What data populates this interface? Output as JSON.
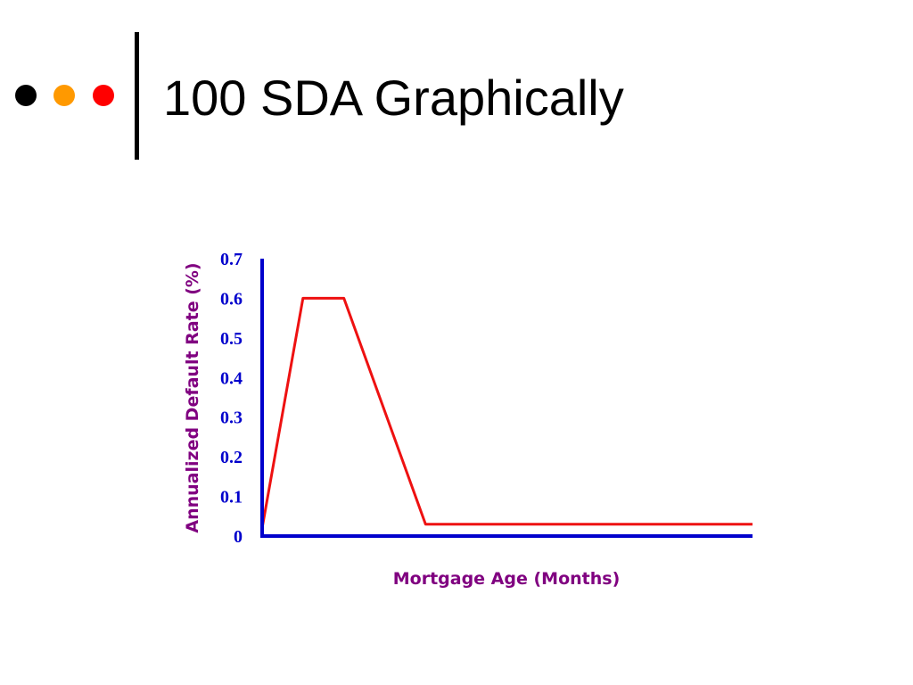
{
  "slide": {
    "title": "100 SDA Graphically"
  },
  "decor": {
    "bullet_colors": [
      "#000000",
      "#ff9900",
      "#ff0000"
    ]
  },
  "colors": {
    "axis": "#0000cc",
    "series": "#ee1111",
    "axis_title": "#800080",
    "tick_label": "#0000cc"
  },
  "chart_data": {
    "type": "line",
    "title": "",
    "xlabel": "Mortgage Age (Months)",
    "ylabel": "Annualized Default Rate (%)",
    "ylim": [
      0,
      0.7
    ],
    "yticks": [
      "0",
      "0.1",
      "0.2",
      "0.3",
      "0.4",
      "0.5",
      "0.6",
      "0.7"
    ],
    "xticks_shown": false,
    "xlim": [
      0,
      360
    ],
    "grid": false,
    "legend": "none",
    "series": [
      {
        "x": [
          0,
          30,
          60,
          120,
          360
        ],
        "y": [
          0.02,
          0.6,
          0.6,
          0.03,
          0.03
        ]
      }
    ]
  }
}
